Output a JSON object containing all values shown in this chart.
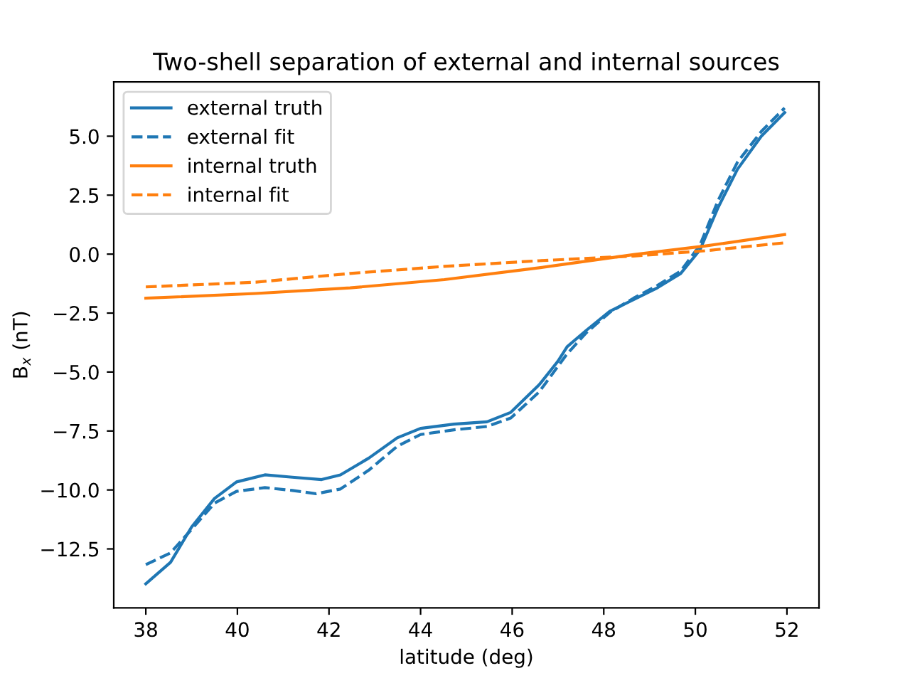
{
  "chart_data": {
    "type": "line",
    "title": "Two-shell separation of external and internal sources",
    "xlabel": "latitude (deg)",
    "ylabel": "B$_{x}$ (nT)",
    "xlim": [
      37.3,
      52.7
    ],
    "ylim": [
      -15.0,
      7.3
    ],
    "xticks": [
      38,
      40,
      42,
      44,
      46,
      48,
      50,
      52
    ],
    "yticks": [
      {
        "value": -12.5,
        "label": "−12.5"
      },
      {
        "value": -10.0,
        "label": "−10.0"
      },
      {
        "value": -7.5,
        "label": "−7.5"
      },
      {
        "value": -5.0,
        "label": "−5.0"
      },
      {
        "value": -2.5,
        "label": "−2.5"
      },
      {
        "value": 0.0,
        "label": "0.0"
      },
      {
        "value": 2.5,
        "label": "2.5"
      },
      {
        "value": 5.0,
        "label": "5.0"
      }
    ],
    "grid": false,
    "legend": "top left",
    "marker": "none",
    "series": [
      {
        "name": "external truth",
        "color": "#1f77b4",
        "line_style": "solid",
        "x": [
          38,
          38.54,
          39.0,
          39.5,
          39.98,
          40.6,
          41.2,
          41.84,
          42.25,
          42.87,
          43.49,
          44.0,
          44.73,
          45.45,
          45.97,
          46.59,
          47.0,
          47.2,
          47.62,
          48.13,
          48.65,
          49.17,
          49.68,
          50.1,
          50.5,
          50.92,
          51.44,
          51.95
        ],
        "values": [
          -13.98,
          -13.07,
          -11.57,
          -10.36,
          -9.66,
          -9.36,
          -9.46,
          -9.56,
          -9.36,
          -8.65,
          -7.79,
          -7.39,
          -7.21,
          -7.11,
          -6.71,
          -5.54,
          -4.54,
          -3.93,
          -3.23,
          -2.43,
          -1.93,
          -1.43,
          -0.82,
          0.18,
          1.99,
          3.6,
          5.0,
          6.0
        ]
      },
      {
        "name": "external fit",
        "color": "#1f77b4",
        "line_style": "dashed",
        "x": [
          38,
          38.54,
          39.0,
          39.5,
          39.98,
          40.6,
          41.2,
          41.72,
          42.25,
          42.87,
          43.49,
          44.0,
          44.73,
          45.45,
          45.97,
          46.59,
          47.2,
          47.62,
          48.13,
          48.65,
          49.17,
          49.68,
          50.1,
          50.5,
          50.92,
          51.44,
          51.95
        ],
        "values": [
          -13.17,
          -12.67,
          -11.67,
          -10.56,
          -10.06,
          -9.9,
          -10.02,
          -10.16,
          -9.96,
          -9.16,
          -8.15,
          -7.65,
          -7.45,
          -7.31,
          -6.95,
          -5.84,
          -4.23,
          -3.33,
          -2.47,
          -1.87,
          -1.33,
          -0.72,
          0.38,
          2.29,
          3.9,
          5.2,
          6.2
        ]
      },
      {
        "name": "internal truth",
        "color": "#ff7f0e",
        "line_style": "solid",
        "x": [
          38,
          40.4,
          42.46,
          44.52,
          46.59,
          48.65,
          50.2,
          51.95
        ],
        "values": [
          -1.87,
          -1.67,
          -1.43,
          -1.08,
          -0.58,
          -0.02,
          0.34,
          0.83
        ]
      },
      {
        "name": "internal fit",
        "color": "#ff7f0e",
        "line_style": "dashed",
        "x": [
          38,
          40.4,
          42.46,
          44.52,
          46.59,
          48.65,
          50.2,
          51.95
        ],
        "values": [
          -1.39,
          -1.19,
          -0.82,
          -0.52,
          -0.28,
          -0.08,
          0.14,
          0.48
        ]
      }
    ]
  }
}
